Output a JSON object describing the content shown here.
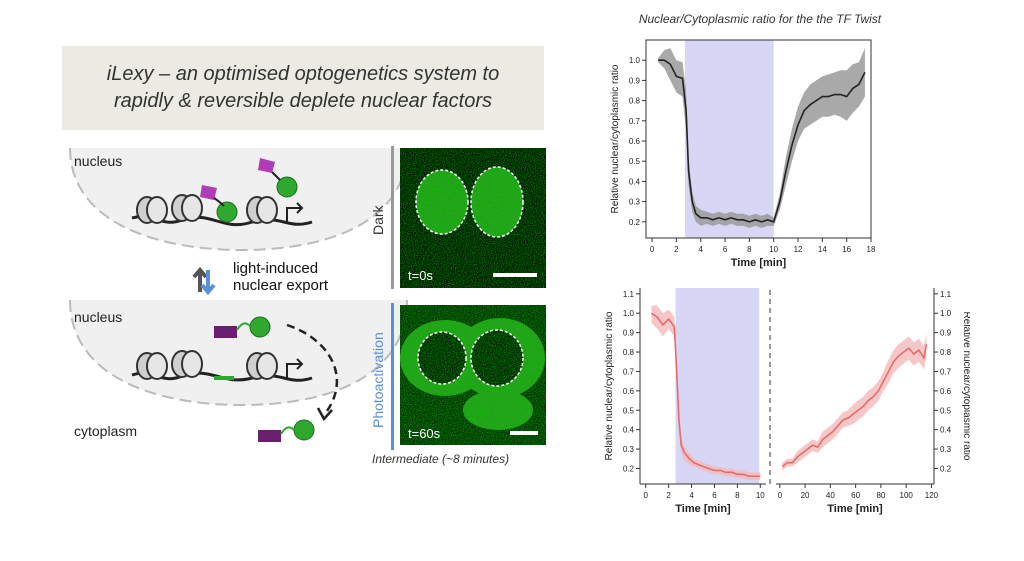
{
  "slide": {
    "banner_line1": "iLexy – an optimised optogenetics system to",
    "banner_line2": "rapidly & reversible deplete nuclear factors",
    "diagram": {
      "nucleus_top": "nucleus",
      "nucleus_bottom": "nucleus",
      "cytoplasm": "cytoplasm",
      "arrow_label_line1": "light-induced",
      "arrow_label_line2": "nuclear export"
    },
    "micrographs": {
      "dark_label": "Dark",
      "photo_label": "Photoactivation",
      "t_top": "t=0s",
      "t_bottom": "t=60s",
      "caption": "Intermediate (~8 minutes)"
    },
    "colors": {
      "banner_bg": "#ebeae3",
      "highlight": "#d7d7f5",
      "line_black": "#222222",
      "band_gray": "#9a9a9a",
      "line_red": "#e66b6b",
      "band_red": "#f4b9b9",
      "dark_bar": "#999999",
      "photo_bar": "#5b8fd6",
      "cell_green": "#2a8a1f"
    }
  },
  "chart_title": "Nuclear/Cytoplasmic ratio for the the TF Twist",
  "chart_data": [
    {
      "type": "line",
      "ylabel": "Relative nuclear/cytoplasmic ratio",
      "xlabel": "Time [min]",
      "xlim": [
        -0.5,
        18
      ],
      "ylim": [
        0.12,
        1.1
      ],
      "xticks": [
        0,
        2,
        4,
        6,
        8,
        10,
        12,
        14,
        16,
        18
      ],
      "yticks": [
        0.2,
        0.3,
        0.4,
        0.5,
        0.6,
        0.7,
        0.8,
        0.9,
        1.0
      ],
      "highlight": [
        2.7,
        10
      ],
      "series": [
        {
          "x": [
            0.5,
            1.0,
            1.5,
            2.0,
            2.5,
            2.8,
            3.0,
            3.3,
            3.6,
            4.0,
            4.5,
            5.0,
            5.5,
            6.0,
            6.5,
            7.0,
            7.5,
            8.0,
            8.5,
            9.0,
            9.5,
            10.0,
            10.5,
            11.0,
            11.5,
            12.0,
            12.5,
            13.0,
            13.5,
            14.0,
            14.5,
            15.0,
            15.5,
            16.0,
            16.5,
            17.0,
            17.5
          ],
          "y": [
            1.0,
            1.0,
            0.98,
            0.92,
            0.91,
            0.75,
            0.45,
            0.3,
            0.24,
            0.22,
            0.22,
            0.21,
            0.22,
            0.21,
            0.22,
            0.21,
            0.21,
            0.2,
            0.21,
            0.2,
            0.21,
            0.2,
            0.3,
            0.45,
            0.58,
            0.68,
            0.75,
            0.78,
            0.8,
            0.82,
            0.82,
            0.83,
            0.83,
            0.82,
            0.86,
            0.88,
            0.94
          ],
          "lower": [
            0.99,
            0.96,
            0.9,
            0.84,
            0.82,
            0.65,
            0.38,
            0.25,
            0.2,
            0.18,
            0.19,
            0.18,
            0.19,
            0.18,
            0.19,
            0.18,
            0.18,
            0.17,
            0.18,
            0.17,
            0.18,
            0.18,
            0.26,
            0.38,
            0.5,
            0.6,
            0.66,
            0.68,
            0.7,
            0.72,
            0.72,
            0.73,
            0.72,
            0.7,
            0.74,
            0.77,
            0.82
          ],
          "upper": [
            1.01,
            1.05,
            1.06,
            1.0,
            0.99,
            0.85,
            0.52,
            0.35,
            0.28,
            0.26,
            0.25,
            0.24,
            0.25,
            0.24,
            0.25,
            0.24,
            0.24,
            0.23,
            0.24,
            0.23,
            0.24,
            0.22,
            0.34,
            0.52,
            0.66,
            0.77,
            0.84,
            0.88,
            0.9,
            0.92,
            0.93,
            0.94,
            0.95,
            0.95,
            0.98,
            0.99,
            1.06
          ]
        }
      ]
    },
    {
      "type": "line",
      "ylabel": "Relative nuclear/cytoplasmic ratio",
      "xlabel": "Time [min]",
      "xlim": [
        -0.5,
        10.5
      ],
      "ylim": [
        0.12,
        1.13
      ],
      "xticks": [
        0,
        2,
        4,
        6,
        8,
        10
      ],
      "yticks": [
        0.2,
        0.3,
        0.4,
        0.5,
        0.6,
        0.7,
        0.8,
        0.9,
        1.0,
        1.1
      ],
      "highlight": [
        2.6,
        9.9
      ],
      "series": [
        {
          "x": [
            0.5,
            1.0,
            1.5,
            2.0,
            2.5,
            2.7,
            2.9,
            3.1,
            3.4,
            3.8,
            4.2,
            4.6,
            5.0,
            5.5,
            6.0,
            6.5,
            7.0,
            7.5,
            8.0,
            8.5,
            9.0,
            9.5,
            10.0
          ],
          "y": [
            1.0,
            0.98,
            0.94,
            0.97,
            0.93,
            0.7,
            0.45,
            0.32,
            0.28,
            0.25,
            0.23,
            0.22,
            0.21,
            0.2,
            0.19,
            0.19,
            0.18,
            0.18,
            0.17,
            0.17,
            0.16,
            0.16,
            0.16
          ],
          "lower": [
            0.95,
            0.92,
            0.88,
            0.92,
            0.88,
            0.62,
            0.38,
            0.28,
            0.24,
            0.22,
            0.21,
            0.2,
            0.19,
            0.18,
            0.17,
            0.17,
            0.16,
            0.16,
            0.15,
            0.15,
            0.14,
            0.14,
            0.14
          ],
          "upper": [
            1.04,
            1.04,
            1.0,
            1.02,
            0.98,
            0.78,
            0.52,
            0.36,
            0.31,
            0.28,
            0.25,
            0.24,
            0.23,
            0.22,
            0.21,
            0.21,
            0.2,
            0.2,
            0.19,
            0.19,
            0.18,
            0.18,
            0.18
          ]
        }
      ]
    },
    {
      "type": "line",
      "ylabel": "Relative nuclear/cytoplasmic ratio",
      "xlabel": "Time [min]",
      "xlim": [
        -3,
        122
      ],
      "ylim": [
        0.12,
        1.13
      ],
      "xticks": [
        0,
        20,
        40,
        60,
        80,
        100,
        120
      ],
      "yticks": [
        0.2,
        0.3,
        0.4,
        0.5,
        0.6,
        0.7,
        0.8,
        0.9,
        1.0,
        1.1
      ],
      "series": [
        {
          "x": [
            2,
            6,
            10,
            14,
            18,
            22,
            26,
            30,
            34,
            38,
            42,
            46,
            50,
            54,
            58,
            62,
            66,
            70,
            74,
            78,
            82,
            86,
            90,
            94,
            98,
            102,
            106,
            110,
            114,
            116
          ],
          "y": [
            0.21,
            0.23,
            0.23,
            0.26,
            0.28,
            0.3,
            0.32,
            0.31,
            0.35,
            0.37,
            0.39,
            0.42,
            0.45,
            0.46,
            0.48,
            0.5,
            0.52,
            0.55,
            0.57,
            0.6,
            0.65,
            0.7,
            0.75,
            0.78,
            0.8,
            0.82,
            0.79,
            0.81,
            0.77,
            0.84
          ],
          "lower": [
            0.19,
            0.21,
            0.21,
            0.23,
            0.25,
            0.27,
            0.29,
            0.28,
            0.31,
            0.33,
            0.35,
            0.38,
            0.41,
            0.42,
            0.43,
            0.45,
            0.47,
            0.5,
            0.52,
            0.55,
            0.6,
            0.64,
            0.69,
            0.72,
            0.74,
            0.76,
            0.73,
            0.75,
            0.71,
            0.78
          ],
          "upper": [
            0.23,
            0.25,
            0.25,
            0.29,
            0.31,
            0.33,
            0.35,
            0.34,
            0.39,
            0.41,
            0.43,
            0.46,
            0.49,
            0.5,
            0.53,
            0.55,
            0.57,
            0.6,
            0.62,
            0.65,
            0.7,
            0.76,
            0.81,
            0.84,
            0.86,
            0.88,
            0.85,
            0.87,
            0.83,
            0.9
          ]
        }
      ]
    }
  ]
}
